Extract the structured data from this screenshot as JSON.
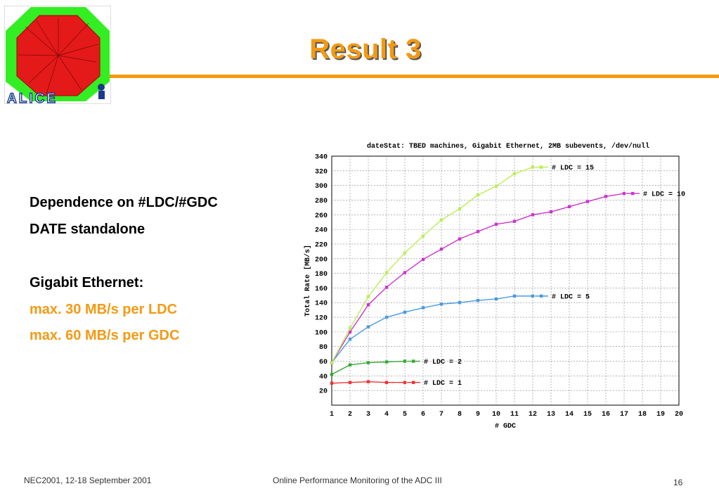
{
  "slide": {
    "title": "Result 3",
    "accent_color": "#f39a13"
  },
  "logo": {
    "text": "ALICE",
    "icon": "alice-octagon-logo-icon"
  },
  "bullets": [
    {
      "text": "Dependence on #LDC/#GDC",
      "style": "dark"
    },
    {
      "text": "DATE standalone",
      "style": "dark"
    },
    {
      "text": "Gigabit Ethernet:",
      "style": "dark"
    },
    {
      "text": "max. 30 MB/s per LDC",
      "style": "orange"
    },
    {
      "text": "max. 60 MB/s per GDC",
      "style": "orange"
    }
  ],
  "chart_data": {
    "type": "line",
    "title": "dateStat: TBED machines, Gigabit Ethernet, 2MB subevents, /dev/null",
    "xlabel": "# GDC",
    "ylabel": "Total Rate [MB/s]",
    "xlim": [
      1,
      20
    ],
    "ylim": [
      0,
      340
    ],
    "xticks": [
      1,
      2,
      3,
      4,
      5,
      6,
      7,
      8,
      9,
      10,
      11,
      12,
      13,
      14,
      15,
      16,
      17,
      18,
      19,
      20
    ],
    "yticks": [
      20,
      40,
      60,
      80,
      100,
      120,
      140,
      160,
      180,
      200,
      220,
      240,
      260,
      280,
      300,
      320,
      340
    ],
    "grid": true,
    "series": [
      {
        "name": "# LDC = 1",
        "color": "#ee3333",
        "x": [
          1,
          2,
          3,
          4,
          5
        ],
        "y": [
          30,
          31,
          32,
          31,
          31
        ]
      },
      {
        "name": "# LDC = 2",
        "color": "#33aa33",
        "x": [
          1,
          2,
          3,
          4,
          5
        ],
        "y": [
          42,
          55,
          58,
          59,
          60
        ]
      },
      {
        "name": "# LDC = 5",
        "color": "#4a9ae0",
        "x": [
          1,
          2,
          3,
          4,
          5,
          6,
          7,
          8,
          9,
          10,
          11,
          12
        ],
        "y": [
          58,
          90,
          107,
          120,
          127,
          133,
          138,
          140,
          143,
          145,
          149,
          149
        ]
      },
      {
        "name": "# LDC = 10",
        "color": "#cc33cc",
        "x": [
          1,
          2,
          3,
          4,
          5,
          6,
          7,
          8,
          9,
          10,
          11,
          12,
          13,
          14,
          15,
          16,
          17
        ],
        "y": [
          58,
          100,
          137,
          161,
          181,
          199,
          213,
          227,
          237,
          247,
          251,
          260,
          264,
          271,
          278,
          285,
          289
        ]
      },
      {
        "name": "# LDC = 15",
        "color": "#bbee55",
        "x": [
          1,
          2,
          3,
          4,
          5,
          6,
          7,
          8,
          9,
          10,
          11,
          12
        ],
        "y": [
          58,
          105,
          148,
          181,
          208,
          231,
          253,
          268,
          287,
          299,
          316,
          325
        ]
      }
    ]
  },
  "footer": {
    "left": "NEC2001, 12-18 September 2001",
    "center": "Online Performance Monitoring of the ADC III",
    "page": "16"
  }
}
